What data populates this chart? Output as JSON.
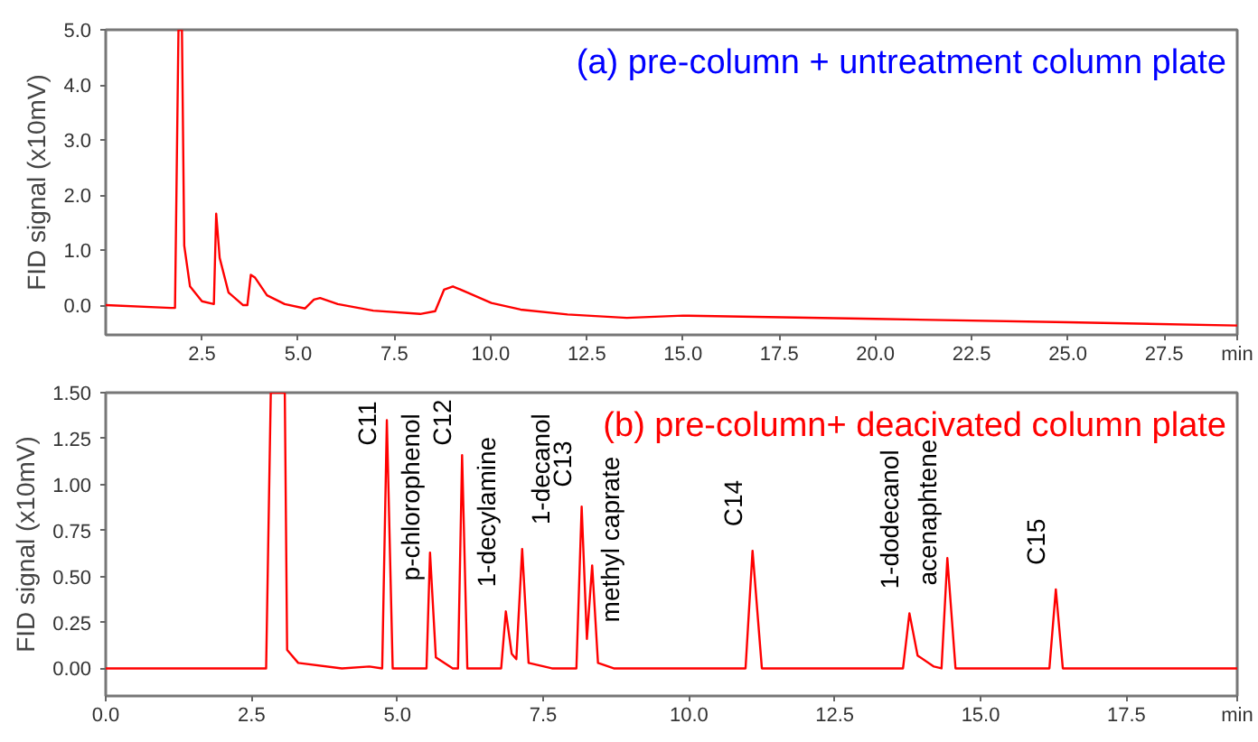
{
  "chart_data": [
    {
      "type": "line",
      "title": "(a) pre-column + untreatment column plate",
      "ylabel": "FID signal (x10mV)",
      "xlabel": "min",
      "xlim": [
        0,
        29.4
      ],
      "ylim": [
        -0.54,
        5.0
      ],
      "xticks": [
        2.5,
        {
          "value": 5,
          "label": "5.0"
        },
        7.5,
        {
          "value": 10,
          "label": "10.0"
        },
        12.5,
        {
          "value": 15,
          "label": "15.0"
        },
        17.5,
        {
          "value": 20,
          "label": "20.0"
        },
        22.5,
        {
          "value": 25,
          "label": "25.0"
        },
        27.5
      ],
      "yticks": [
        {
          "value": 0,
          "label": "0.0"
        },
        {
          "value": 1,
          "label": "1.0"
        },
        {
          "value": 2,
          "label": "2.0"
        },
        {
          "value": 3,
          "label": "3.0"
        },
        {
          "value": 4,
          "label": "4.0"
        },
        {
          "value": 5,
          "label": "5.0"
        }
      ],
      "grid": false,
      "marker": "none",
      "series": [
        {
          "color": "#ff0000",
          "x": [
            0,
            1.7,
            1.8,
            1.89,
            1.98,
            2.04,
            2.19,
            2.5,
            2.81,
            2.87,
            2.96,
            3.19,
            3.57,
            3.68,
            3.77,
            3.88,
            4.19,
            4.65,
            5.18,
            5.41,
            5.57,
            6.03,
            6.95,
            8.17,
            8.56,
            8.79,
            9.02,
            9.4,
            10.02,
            10.78,
            12.0,
            13.54,
            15,
            20,
            25,
            29.4
          ],
          "values": [
            0.0,
            -0.05,
            -0.05,
            5.0,
            5.0,
            1.08,
            0.34,
            0.07,
            0.02,
            1.66,
            0.86,
            0.23,
            0.0,
            0.0,
            0.55,
            0.5,
            0.18,
            0.02,
            -0.06,
            0.1,
            0.13,
            0.02,
            -0.1,
            -0.16,
            -0.11,
            0.28,
            0.34,
            0.23,
            0.04,
            -0.08,
            -0.17,
            -0.23,
            -0.19,
            -0.25,
            -0.31,
            -0.37
          ]
        }
      ]
    },
    {
      "type": "line",
      "title": "(b) pre-column+ deacivated column plate",
      "ylabel": "FID signal (x10mV)",
      "xlabel": "min",
      "xlim": [
        0,
        19.4
      ],
      "ylim": [
        -0.15,
        1.5
      ],
      "xticks": [
        {
          "value": 0,
          "label": "0.0"
        },
        2.5,
        {
          "value": 5,
          "label": "5.0"
        },
        7.5,
        {
          "value": 10,
          "label": "10.0"
        },
        12.5,
        {
          "value": 15,
          "label": "15.0"
        },
        17.5
      ],
      "yticks": [
        {
          "value": 0,
          "label": "0.00"
        },
        0.25,
        {
          "value": 0.5,
          "label": "0.50"
        },
        0.75,
        {
          "value": 1,
          "label": "1.00"
        },
        1.25,
        {
          "value": 1.5,
          "label": "1.50"
        }
      ],
      "grid": false,
      "marker": "none",
      "series": [
        {
          "color": "#ff0000",
          "x": [
            0,
            2.75,
            2.83,
            3.07,
            3.11,
            3.3,
            4.05,
            4.52,
            4.74,
            4.82,
            4.92,
            5.5,
            5.56,
            5.66,
            5.95,
            6.04,
            6.11,
            6.2,
            6.78,
            6.86,
            6.96,
            7.04,
            7.14,
            7.25,
            7.65,
            8.07,
            8.16,
            8.25,
            8.34,
            8.44,
            8.71,
            10.97,
            11.09,
            11.25,
            13.67,
            13.78,
            13.92,
            14.2,
            14.33,
            14.43,
            14.57,
            16.18,
            16.29,
            16.41,
            19.4
          ],
          "values": [
            0,
            0,
            1.5,
            1.5,
            0.1,
            0.03,
            0,
            0.01,
            0,
            1.35,
            0,
            0,
            0.63,
            0.06,
            0,
            0,
            1.16,
            0,
            0,
            0.31,
            0.08,
            0.05,
            0.65,
            0.03,
            0,
            0,
            0.88,
            0.16,
            0.56,
            0.03,
            0,
            0,
            0.64,
            0,
            0,
            0.3,
            0.07,
            0.01,
            0,
            0.6,
            0,
            0,
            0.43,
            0,
            0
          ]
        }
      ],
      "annotations": [
        {
          "text": "C11",
          "x": 4.82,
          "y": 1.35
        },
        {
          "text": "p-chlorophenol",
          "x": 5.56,
          "y": 0.63
        },
        {
          "text": "C12",
          "x": 6.11,
          "y": 1.16
        },
        {
          "text": "1-decylamine",
          "x": 6.86,
          "y": 0.31
        },
        {
          "text": "1-decanol",
          "x": 7.14,
          "y": 0.65
        },
        {
          "text": "C13",
          "x": 8.16,
          "y": 0.88
        },
        {
          "text": "methyl caprate",
          "x": 8.34,
          "y": 0.56
        },
        {
          "text": "C14",
          "x": 11.09,
          "y": 0.64
        },
        {
          "text": "1-dodecanol",
          "x": 13.78,
          "y": 0.3
        },
        {
          "text": "acenaphtene",
          "x": 14.43,
          "y": 0.6
        },
        {
          "text": "C15",
          "x": 16.29,
          "y": 0.43
        }
      ]
    }
  ]
}
